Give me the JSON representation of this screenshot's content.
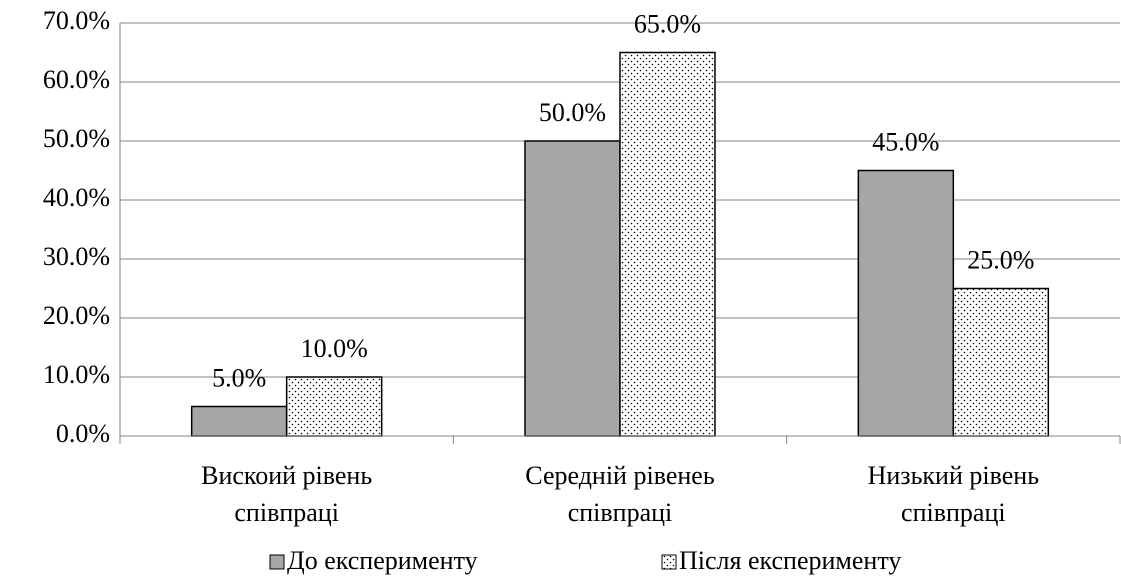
{
  "chart_data": {
    "type": "bar",
    "categories": [
      [
        "Вискоий рівень",
        "співпраці"
      ],
      [
        "Середній рівенеь",
        "співпраці"
      ],
      [
        "Низький рівень",
        "співпраці"
      ]
    ],
    "series": [
      {
        "name": "До експерименту",
        "color": "#a6a6a6",
        "values": [
          5,
          50,
          45
        ],
        "value_labels": [
          "5.0%",
          "50.0%",
          "45.0%"
        ]
      },
      {
        "name": "Після експерименту",
        "color": "#ffffff",
        "pattern": "dots",
        "values": [
          10,
          65,
          25
        ],
        "value_labels": [
          "10.0%",
          "65.0%",
          "25.0%"
        ]
      }
    ],
    "ylim": [
      0,
      70
    ],
    "yticks": [
      {
        "value": 0,
        "label": "0.0%"
      },
      {
        "value": 10,
        "label": "10.0%"
      },
      {
        "value": 20,
        "label": "20.0%"
      },
      {
        "value": 30,
        "label": "30.0%"
      },
      {
        "value": 40,
        "label": "40.0%"
      },
      {
        "value": 50,
        "label": "50.0%"
      },
      {
        "value": 60,
        "label": "60.0%"
      },
      {
        "value": 70,
        "label": "70.0%"
      }
    ],
    "grid": true,
    "legend": "bottom"
  }
}
